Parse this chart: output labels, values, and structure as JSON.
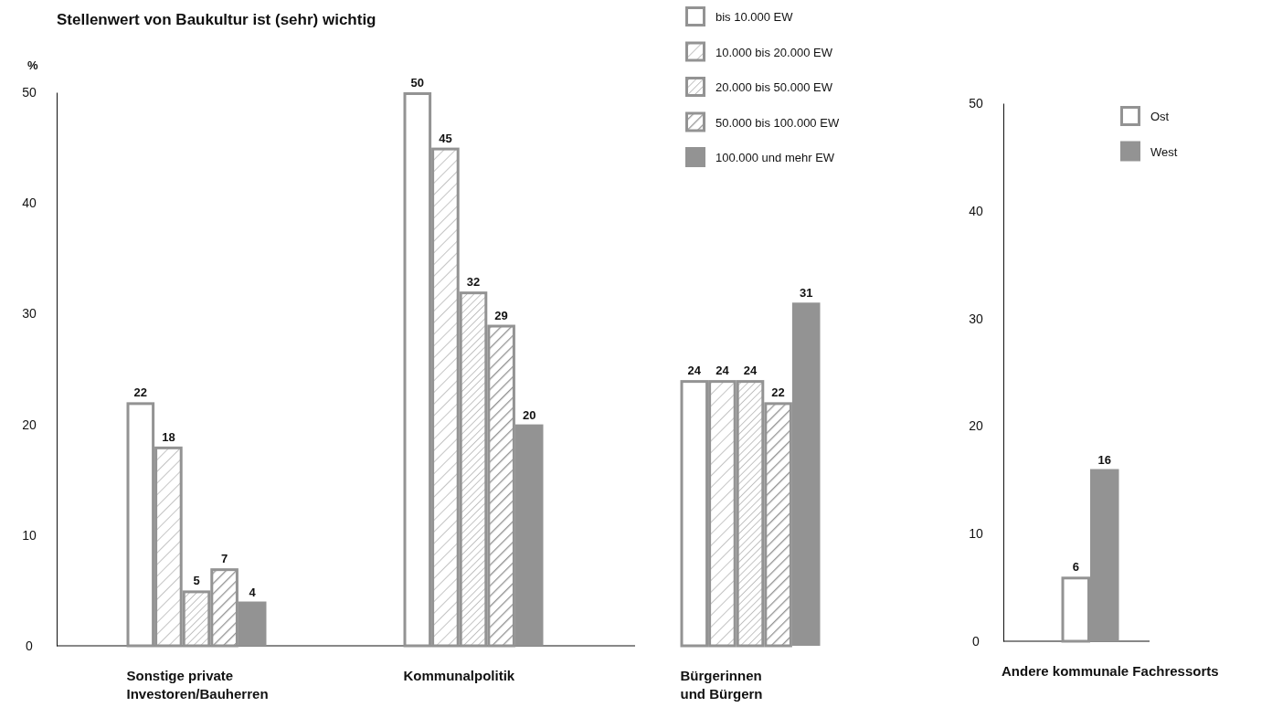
{
  "chart_data": [
    {
      "type": "bar",
      "title": "Stellenwert von Baukultur ist (sehr) wichtig",
      "ylabel": "%",
      "categories": [
        "Sonstige private\nInvestoren/Bauherren",
        "Kommunalpolitik",
        "Bürgerinnen\nund Bürgern"
      ],
      "series": [
        {
          "name": "bis 10.000 EW",
          "color": "#939393",
          "values": [
            22,
            50,
            24
          ]
        },
        {
          "name": "10.000 bis 20.000 EW",
          "color": "#939393",
          "values": [
            18,
            45,
            24
          ]
        },
        {
          "name": "20.000 bis 50.000 EW",
          "color": "#939393",
          "values": [
            5,
            32,
            24
          ]
        },
        {
          "name": "50.000 bis 100.000 EW",
          "color": "#939393",
          "values": [
            7,
            29,
            22
          ]
        },
        {
          "name": "100.000 und mehr EW",
          "color": "#939393",
          "values": [
            4,
            20,
            31
          ]
        }
      ],
      "ylim": [
        0,
        50
      ],
      "yticks": [
        0,
        10,
        20,
        30,
        40,
        50
      ],
      "data_labels": true,
      "legend": "top right"
    },
    {
      "type": "bar",
      "categories": [
        "Andere kommunale Fachressorts"
      ],
      "series": [
        {
          "name": "Ost",
          "color": "#939393",
          "values": [
            6
          ]
        },
        {
          "name": "West",
          "color": "#939393",
          "values": [
            16
          ]
        }
      ],
      "ylim": [
        0,
        50
      ],
      "yticks": [
        0,
        10,
        20,
        30,
        40,
        50
      ],
      "data_labels": true,
      "legend": "top right"
    }
  ]
}
